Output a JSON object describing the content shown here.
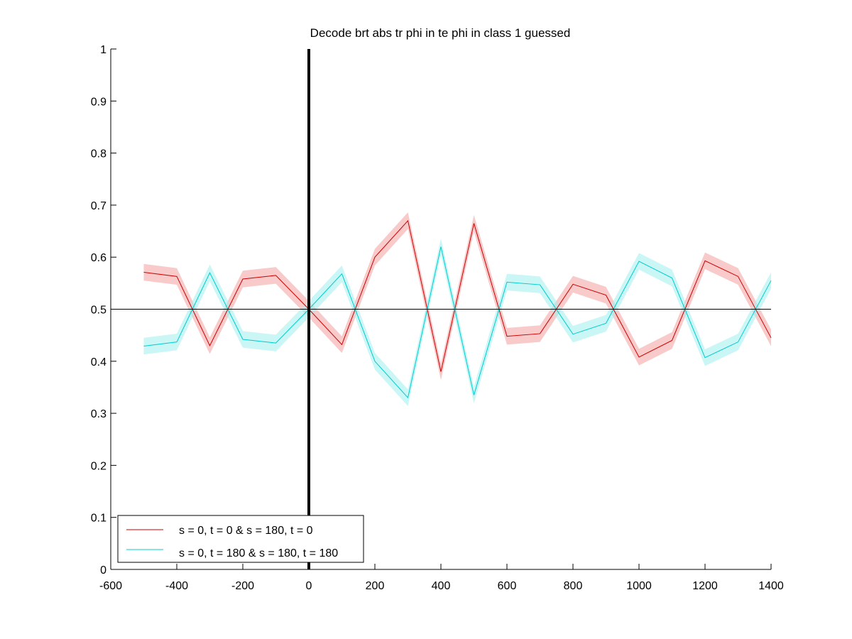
{
  "chart_data": {
    "type": "line",
    "title": "Decode brt abs tr phi in te phi in  class 1 guessed",
    "xlabel": "",
    "ylabel": "",
    "xlim": [
      -600,
      1400
    ],
    "ylim": [
      0,
      1
    ],
    "xticks": [
      -600,
      -400,
      -200,
      0,
      200,
      400,
      600,
      800,
      1000,
      1200,
      1400
    ],
    "yticks": [
      0,
      0.1,
      0.2,
      0.3,
      0.4,
      0.5,
      0.6,
      0.7,
      0.8,
      0.9,
      1
    ],
    "x": [
      -500,
      -400,
      -300,
      -200,
      -100,
      0,
      100,
      200,
      300,
      400,
      500,
      600,
      700,
      800,
      900,
      1000,
      1100,
      1200,
      1300,
      1400
    ],
    "series": [
      {
        "name": "s = 0, t = 0 & s = 180, t = 0",
        "color": "#cc0000",
        "band_color": "#f4a6a6",
        "values": [
          0.571,
          0.563,
          0.43,
          0.558,
          0.565,
          0.5,
          0.432,
          0.6,
          0.67,
          0.38,
          0.665,
          0.448,
          0.453,
          0.548,
          0.527,
          0.408,
          0.44,
          0.593,
          0.563,
          0.445
        ],
        "error": [
          0.016,
          0.016,
          0.016,
          0.016,
          0.016,
          0.016,
          0.016,
          0.016,
          0.016,
          0.016,
          0.016,
          0.016,
          0.016,
          0.016,
          0.016,
          0.016,
          0.016,
          0.016,
          0.016,
          0.016
        ]
      },
      {
        "name": "s = 0, t = 180 & s = 180, t = 180",
        "color": "#00cccc",
        "band_color": "#a6f0f0",
        "values": [
          0.429,
          0.437,
          0.57,
          0.442,
          0.435,
          0.5,
          0.568,
          0.4,
          0.33,
          0.62,
          0.335,
          0.552,
          0.547,
          0.452,
          0.473,
          0.592,
          0.56,
          0.407,
          0.437,
          0.555
        ],
        "error": [
          0.016,
          0.016,
          0.016,
          0.016,
          0.016,
          0.016,
          0.016,
          0.016,
          0.016,
          0.016,
          0.016,
          0.016,
          0.016,
          0.016,
          0.016,
          0.016,
          0.016,
          0.016,
          0.016,
          0.016
        ]
      }
    ],
    "reference_lines": {
      "horizontal_y": 0.5,
      "vertical_x": 0
    },
    "grid": false,
    "legend_placement": "bottom-left"
  }
}
